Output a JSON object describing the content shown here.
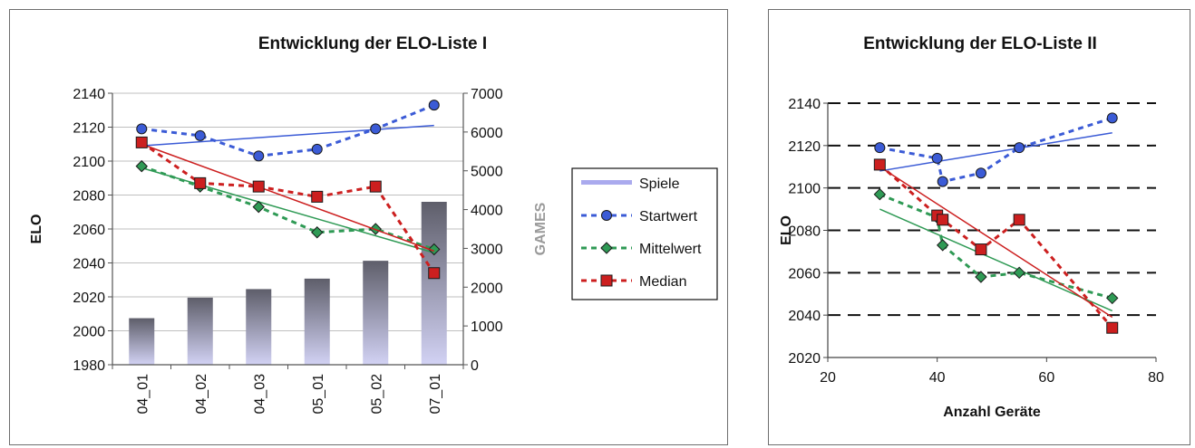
{
  "chart_data": [
    {
      "type": "line",
      "title": "Entwicklung der ELO-Liste I",
      "xlabel": "",
      "ylabel": "ELO",
      "y2label": "GAMES",
      "categories": [
        "04_01",
        "04_02",
        "04_03",
        "05_01",
        "05_02",
        "07_01"
      ],
      "ylim": [
        1980,
        2140
      ],
      "yticks": [
        1980,
        2000,
        2020,
        2040,
        2060,
        2080,
        2100,
        2120,
        2140
      ],
      "y2lim": [
        0,
        7000
      ],
      "y2ticks": [
        0,
        1000,
        2000,
        3000,
        4000,
        5000,
        6000,
        7000
      ],
      "grid": true,
      "legend_placement": "right",
      "series": [
        {
          "name": "Spiele",
          "kind": "bar",
          "axis": "y2",
          "values": [
            1200,
            1730,
            1950,
            2220,
            2680,
            4200
          ],
          "color": "#9999dd"
        },
        {
          "name": "Startwert",
          "kind": "line",
          "marker": "circle",
          "values": [
            2119,
            2115,
            2103,
            2107,
            2119,
            2133
          ],
          "color": "#3b5bd6",
          "trend": [
            2109,
            2121
          ]
        },
        {
          "name": "Mittelwert",
          "kind": "line",
          "marker": "diamond",
          "values": [
            2097,
            2085,
            2073,
            2058,
            2060,
            2048
          ],
          "color": "#2f9a55",
          "trend": [
            2096,
            2046
          ]
        },
        {
          "name": "Median",
          "kind": "line",
          "marker": "square",
          "values": [
            2111,
            2087,
            2085,
            2079,
            2085,
            2034
          ],
          "color": "#cc1f1f",
          "trend": [
            2110,
            2047
          ]
        }
      ]
    },
    {
      "type": "scatter",
      "title": "Entwicklung der ELO-Liste II",
      "xlabel": "Anzahl Geräte",
      "ylabel": "ELO",
      "xlim": [
        20,
        80
      ],
      "xticks": [
        20,
        40,
        60,
        80
      ],
      "ylim": [
        2020,
        2140
      ],
      "yticks": [
        2020,
        2040,
        2060,
        2080,
        2100,
        2120,
        2140
      ],
      "grid": true,
      "x": [
        29.5,
        40,
        41,
        48,
        55,
        72
      ],
      "series": [
        {
          "name": "Startwert",
          "marker": "circle",
          "values": [
            2119,
            2114,
            2103,
            2107,
            2119,
            2133
          ],
          "color": "#3b5bd6",
          "trend": [
            [
              29.5,
              2108
            ],
            [
              72,
              2126
            ]
          ]
        },
        {
          "name": "Mittelwert",
          "marker": "diamond",
          "values": [
            2097,
            2086,
            2073,
            2058,
            2060,
            2048
          ],
          "color": "#2f9a55",
          "trend": [
            [
              29.5,
              2090
            ],
            [
              72,
              2042
            ]
          ]
        },
        {
          "name": "Median",
          "marker": "square",
          "values": [
            2111,
            2087,
            2085,
            2071,
            2085,
            2034
          ],
          "color": "#cc1f1f",
          "trend": [
            [
              29.5,
              2110
            ],
            [
              72,
              2039
            ]
          ]
        }
      ]
    }
  ]
}
